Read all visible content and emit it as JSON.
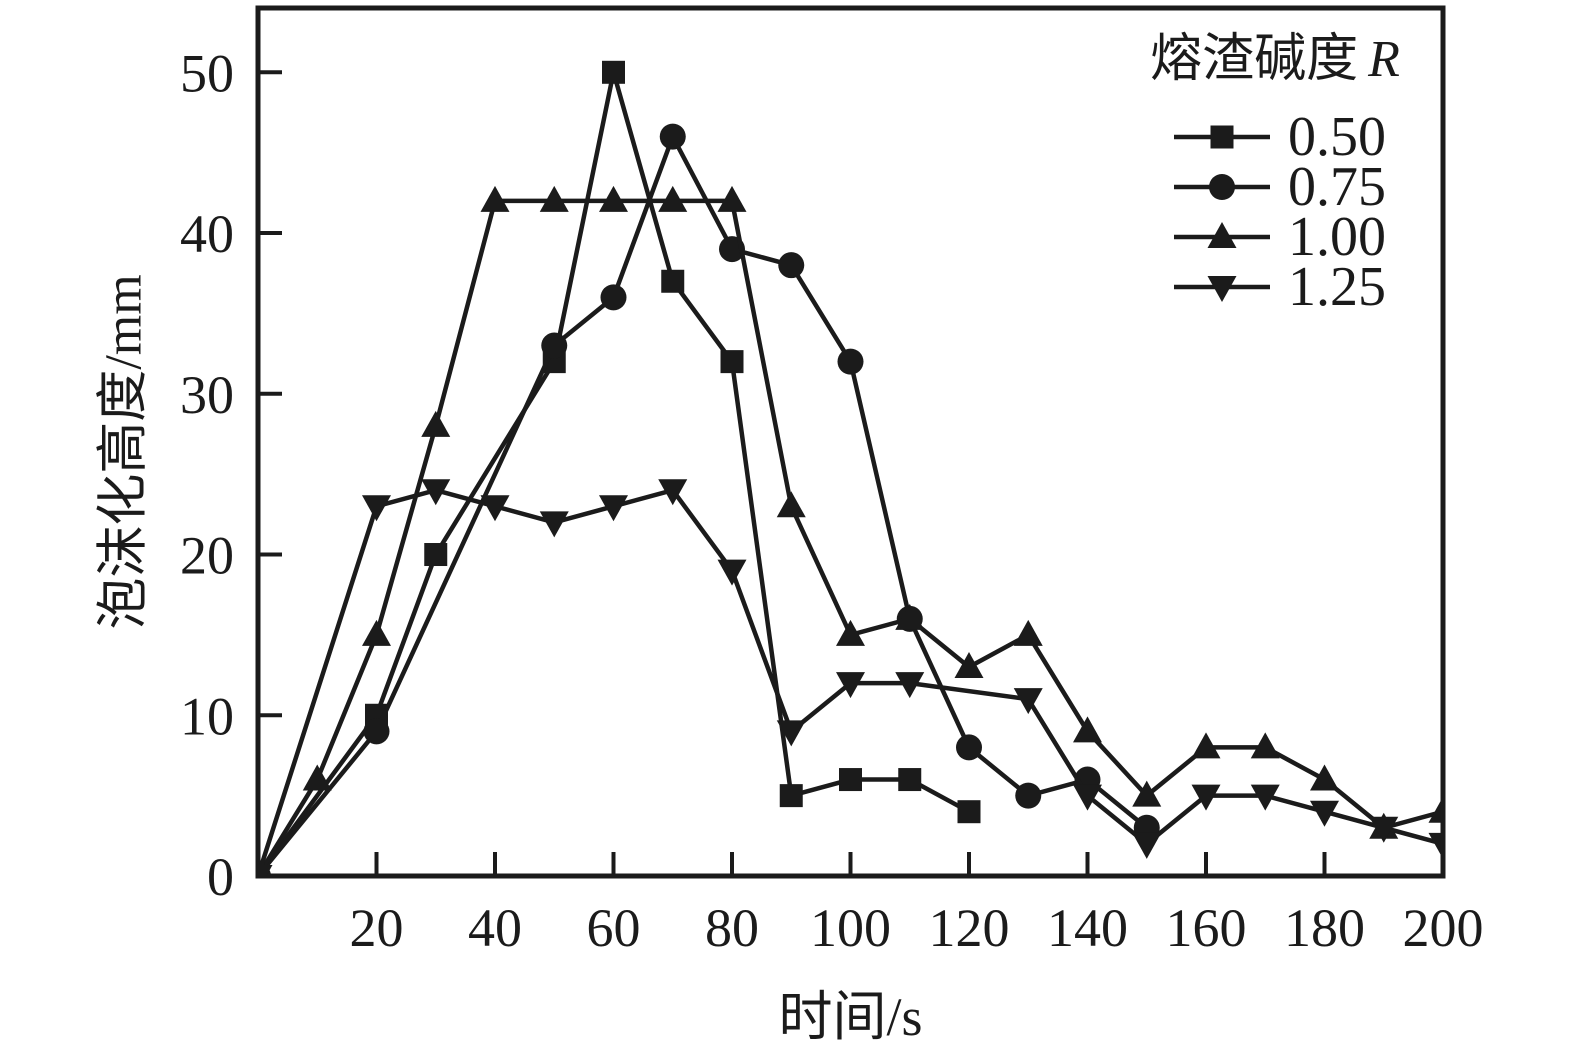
{
  "axes": {
    "x_label": "时间/s",
    "y_label": "泡沫化高度/mm"
  },
  "legend": {
    "title_text": "熔渣碱度",
    "title_symbol": "R"
  },
  "colors": {
    "ink": "#1b1b1b",
    "background": "#ffffff"
  },
  "chart_data": {
    "type": "line",
    "title": "",
    "xlabel": "时间/s",
    "ylabel": "泡沫化高度/mm",
    "xlim": [
      0,
      200
    ],
    "ylim": [
      0,
      54
    ],
    "x_ticks": [
      20,
      40,
      60,
      80,
      100,
      120,
      140,
      160,
      180,
      200
    ],
    "y_ticks": [
      0,
      10,
      20,
      30,
      40,
      50
    ],
    "grid": false,
    "legend_title": "熔渣碱度 R",
    "legend_position": "top-right-inside",
    "series": [
      {
        "name": "R=0.50",
        "label": "0.50",
        "marker": "square",
        "values": [
          [
            0,
            0
          ],
          [
            20,
            10
          ],
          [
            30,
            20
          ],
          [
            50,
            32
          ],
          [
            60,
            50
          ],
          [
            70,
            37
          ],
          [
            80,
            32
          ],
          [
            90,
            5
          ],
          [
            100,
            6
          ],
          [
            110,
            6
          ],
          [
            120,
            4
          ]
        ]
      },
      {
        "name": "R=0.75",
        "label": "0.75",
        "marker": "circle",
        "values": [
          [
            0,
            0
          ],
          [
            20,
            9
          ],
          [
            50,
            33
          ],
          [
            60,
            36
          ],
          [
            70,
            46
          ],
          [
            80,
            39
          ],
          [
            90,
            38
          ],
          [
            100,
            32
          ],
          [
            110,
            16
          ],
          [
            120,
            8
          ],
          [
            130,
            5
          ],
          [
            140,
            6
          ],
          [
            150,
            3
          ]
        ]
      },
      {
        "name": "R=1.00",
        "label": "1.00",
        "marker": "triangle-up",
        "values": [
          [
            0,
            0
          ],
          [
            10,
            6
          ],
          [
            20,
            15
          ],
          [
            30,
            28
          ],
          [
            40,
            42
          ],
          [
            50,
            42
          ],
          [
            60,
            42
          ],
          [
            70,
            42
          ],
          [
            80,
            42
          ],
          [
            90,
            23
          ],
          [
            100,
            15
          ],
          [
            110,
            16
          ],
          [
            120,
            13
          ],
          [
            130,
            15
          ],
          [
            140,
            9
          ],
          [
            150,
            5
          ],
          [
            160,
            8
          ],
          [
            170,
            8
          ],
          [
            180,
            6
          ],
          [
            190,
            3
          ],
          [
            200,
            4
          ]
        ]
      },
      {
        "name": "R=1.25",
        "label": "1.25",
        "marker": "triangle-down",
        "values": [
          [
            0,
            0
          ],
          [
            20,
            23
          ],
          [
            30,
            24
          ],
          [
            40,
            23
          ],
          [
            50,
            22
          ],
          [
            60,
            23
          ],
          [
            70,
            24
          ],
          [
            80,
            19
          ],
          [
            90,
            9
          ],
          [
            100,
            12
          ],
          [
            110,
            12
          ],
          [
            130,
            11
          ],
          [
            140,
            5
          ],
          [
            150,
            2
          ],
          [
            160,
            5
          ],
          [
            170,
            5
          ],
          [
            180,
            4
          ],
          [
            190,
            3
          ],
          [
            200,
            2
          ]
        ]
      }
    ]
  }
}
